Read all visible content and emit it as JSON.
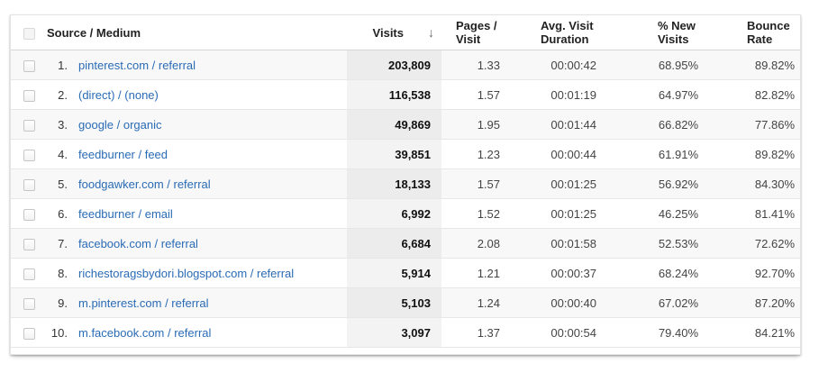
{
  "header": {
    "source_medium": "Source / Medium",
    "visits": "Visits",
    "pages_per_visit": "Pages / Visit",
    "avg_visit_duration": "Avg. Visit Duration",
    "pct_new_visits": "% New Visits",
    "bounce_rate": "Bounce Rate",
    "sort_icon": "↓"
  },
  "rows": [
    {
      "rank": "1.",
      "source": "pinterest.com / referral",
      "visits": "203,809",
      "pages": "1.33",
      "duration": "00:00:42",
      "new_visits": "68.95%",
      "bounce": "89.82%"
    },
    {
      "rank": "2.",
      "source": "(direct) / (none)",
      "visits": "116,538",
      "pages": "1.57",
      "duration": "00:01:19",
      "new_visits": "64.97%",
      "bounce": "82.82%"
    },
    {
      "rank": "3.",
      "source": "google / organic",
      "visits": "49,869",
      "pages": "1.95",
      "duration": "00:01:44",
      "new_visits": "66.82%",
      "bounce": "77.86%"
    },
    {
      "rank": "4.",
      "source": "feedburner / feed",
      "visits": "39,851",
      "pages": "1.23",
      "duration": "00:00:44",
      "new_visits": "61.91%",
      "bounce": "89.82%"
    },
    {
      "rank": "5.",
      "source": "foodgawker.com / referral",
      "visits": "18,133",
      "pages": "1.57",
      "duration": "00:01:25",
      "new_visits": "56.92%",
      "bounce": "84.30%"
    },
    {
      "rank": "6.",
      "source": "feedburner / email",
      "visits": "6,992",
      "pages": "1.52",
      "duration": "00:01:25",
      "new_visits": "46.25%",
      "bounce": "81.41%"
    },
    {
      "rank": "7.",
      "source": "facebook.com / referral",
      "visits": "6,684",
      "pages": "2.08",
      "duration": "00:01:58",
      "new_visits": "52.53%",
      "bounce": "72.62%"
    },
    {
      "rank": "8.",
      "source": "richestoragsbydori.blogspot.com / referral",
      "visits": "5,914",
      "pages": "1.21",
      "duration": "00:00:37",
      "new_visits": "68.24%",
      "bounce": "92.70%"
    },
    {
      "rank": "9.",
      "source": "m.pinterest.com / referral",
      "visits": "5,103",
      "pages": "1.24",
      "duration": "00:00:40",
      "new_visits": "67.02%",
      "bounce": "87.20%"
    },
    {
      "rank": "10.",
      "source": "m.facebook.com / referral",
      "visits": "3,097",
      "pages": "1.37",
      "duration": "00:00:54",
      "new_visits": "79.40%",
      "bounce": "84.21%"
    }
  ],
  "colors": {
    "link_blue": "#2a6bb5",
    "row_stripe": "#f8f8f8",
    "visits_column_shade": "#ececec",
    "header_text": "#222222",
    "divider": "#e7e7e7"
  }
}
